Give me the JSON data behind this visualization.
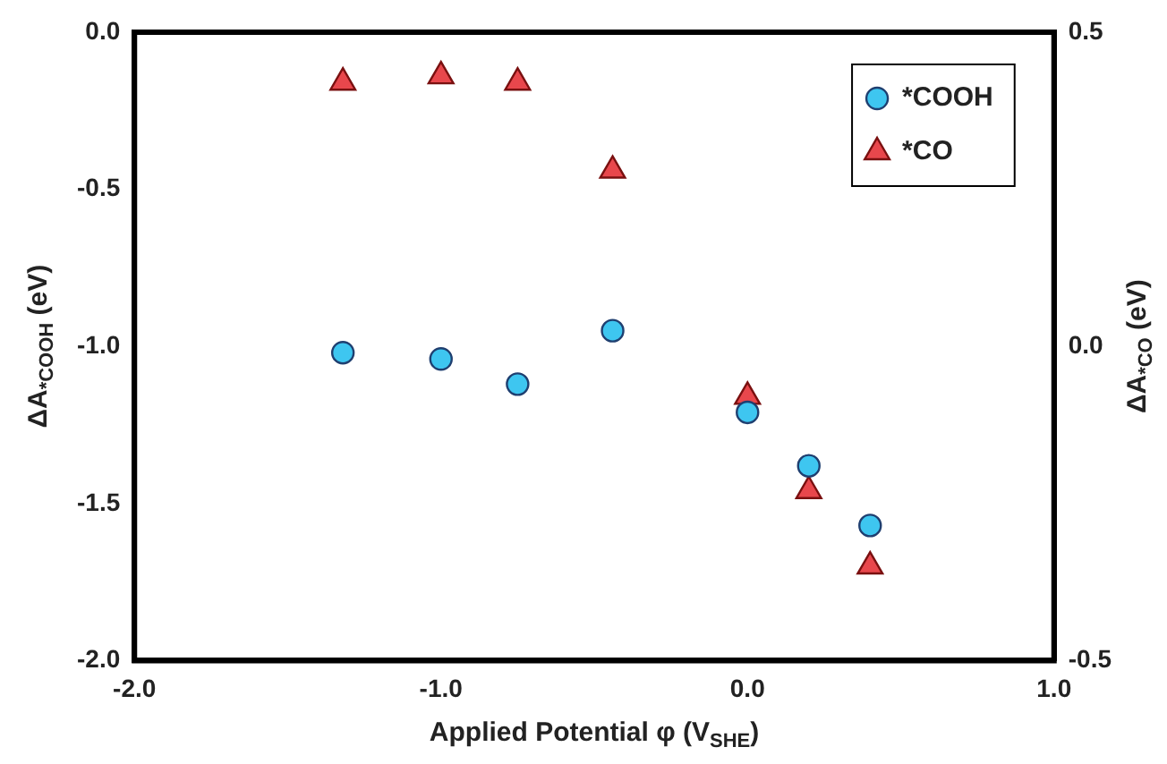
{
  "chart_data": {
    "type": "scatter",
    "xlabel": "Applied Potential φ (V$_{SHE}$)",
    "ylabel": "ΔA$_{*COOH}$ (eV)",
    "y2label": "ΔA$_{*CO}$ (eV)",
    "xlim": [
      -2,
      1
    ],
    "xticks": [
      {
        "value": -2,
        "label": "-2.0"
      },
      {
        "value": -1,
        "label": "-1.0"
      },
      {
        "value": 0,
        "label": "0.0"
      },
      {
        "value": 1,
        "label": "1.0"
      }
    ],
    "ylim": [
      -2,
      0
    ],
    "yticks": [
      {
        "value": -2,
        "label": "-2.0"
      },
      {
        "value": -1.5,
        "label": "-1.5"
      },
      {
        "value": -1,
        "label": "-1.0"
      },
      {
        "value": -0.5,
        "label": "-0.5"
      },
      {
        "value": 0,
        "label": "0.0"
      }
    ],
    "y2lim": [
      -0.5,
      0.5
    ],
    "y2ticks": [
      -0.5,
      {
        "value": 0,
        "label": "0.0"
      },
      0.5
    ],
    "grid": false,
    "legend": "top right",
    "series": [
      {
        "name": "*COOH",
        "color": "#3ec6f0",
        "marker": "circle",
        "x": [
          -1.32,
          -1,
          -0.75,
          -0.44,
          0,
          0.2,
          0.4
        ],
        "values": [
          -1.02,
          -1.04,
          -1.12,
          -0.95,
          -1.21,
          -1.38,
          -1.57
        ]
      },
      {
        "name": "*CO",
        "color": "#e8474c",
        "marker": "triangle",
        "axis": "y2",
        "x": [
          -1.32,
          -1,
          -0.75,
          -0.44,
          0,
          0.2,
          0.4
        ],
        "values": [
          0.42,
          0.43,
          0.42,
          0.28,
          -0.08,
          -0.23,
          -0.35
        ]
      }
    ]
  }
}
